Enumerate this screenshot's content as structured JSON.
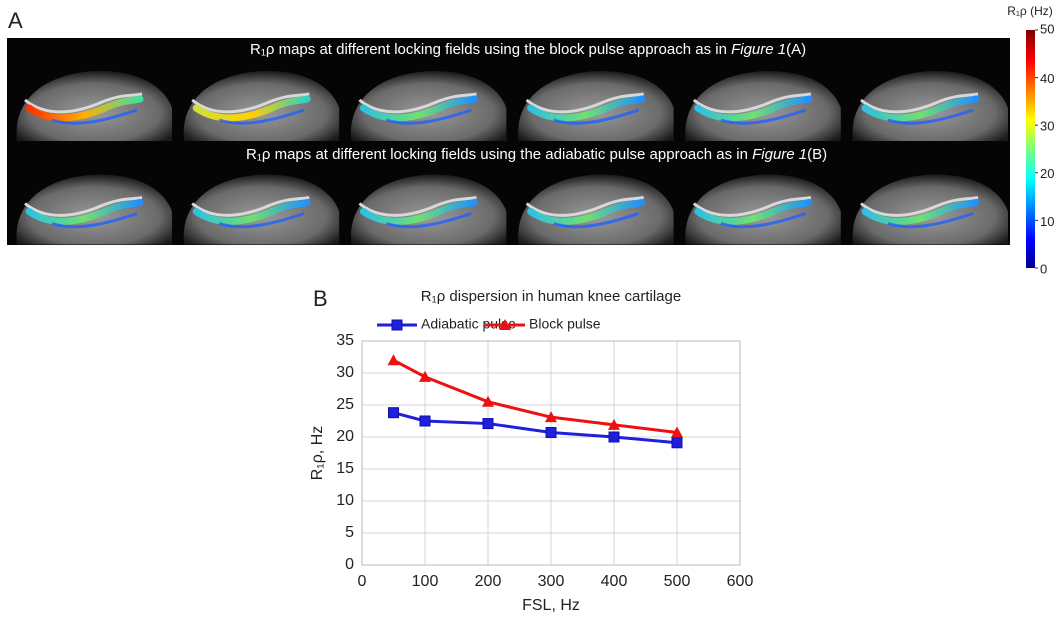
{
  "panel_a": {
    "label": "A",
    "captions": [
      [
        "R₁ρ maps at different locking fields using the block pulse approach as in ",
        "Figure 1",
        "(A)"
      ],
      [
        "R₁ρ maps at different locking fields using the adiabatic pulse approach as in ",
        "Figure 1",
        "(B)"
      ]
    ],
    "colorbar": {
      "label": "R₁ρ (Hz)",
      "lim": [
        0,
        50
      ],
      "ticks": [
        0,
        10,
        20,
        30,
        40,
        50
      ]
    }
  },
  "panel_b": {
    "label": "B"
  },
  "chart_data": {
    "type": "line",
    "title": "R₁ρ dispersion in human knee cartilage",
    "x_label": "FSL, Hz",
    "y_label": "R₁ρ, Hz",
    "x": [
      50,
      100,
      200,
      300,
      400,
      500
    ],
    "series": [
      {
        "name": "Adiabatic pulse",
        "color": "#1f1fe0",
        "marker": "square",
        "values": [
          23.8,
          22.5,
          22.1,
          20.7,
          20.0,
          19.1
        ]
      },
      {
        "name": "Block pulse",
        "color": "#ee1111",
        "marker": "triangle",
        "values": [
          32.0,
          29.4,
          25.5,
          23.1,
          21.9,
          20.7
        ]
      }
    ],
    "xlim": [
      0,
      600
    ],
    "xticks": [
      0,
      100,
      200,
      300,
      400,
      500,
      600
    ],
    "ylim": [
      0,
      35
    ],
    "yticks": [
      0,
      5,
      10,
      15,
      20,
      25,
      30,
      35
    ],
    "grid": true,
    "legend": "top"
  }
}
